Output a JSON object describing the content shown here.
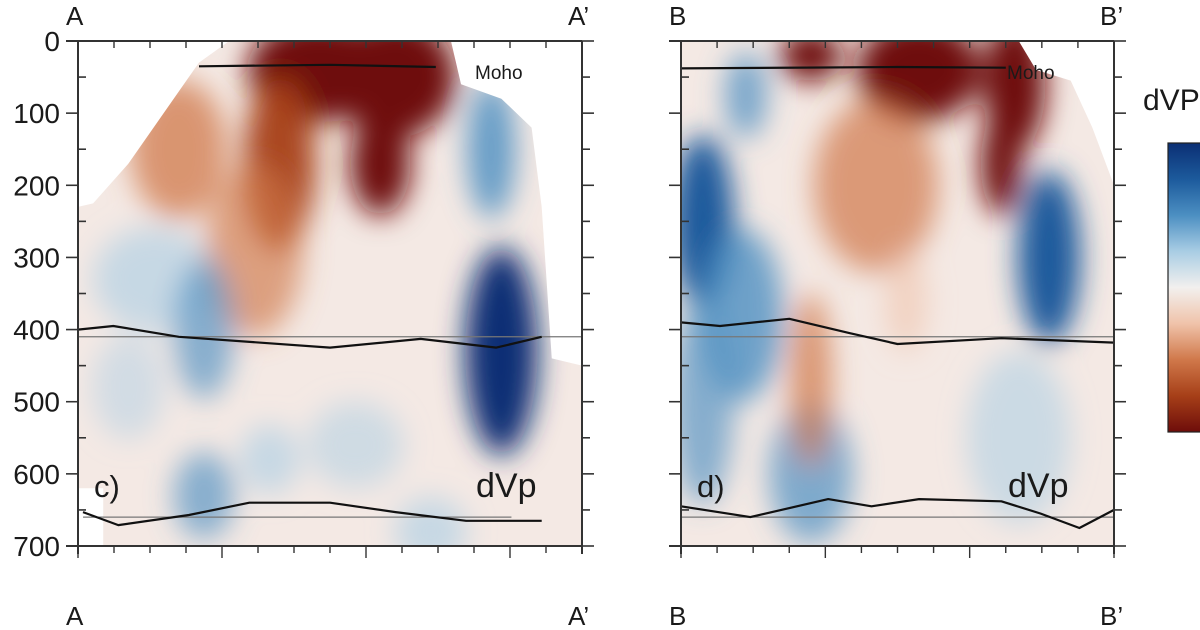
{
  "chart_data": {
    "type": "heatmap",
    "colorbar": {
      "label": "dVP",
      "colors": [
        "#0b2f74",
        "#1c5a9c",
        "#4c8fc2",
        "#a9cde4",
        "#f2f0ee",
        "#f0c3aa",
        "#d0784a",
        "#a63f18",
        "#6e0d0a"
      ]
    },
    "yaxis": {
      "label": "",
      "ylim": [
        0,
        700
      ],
      "ticks": [
        "0",
        "100",
        "200",
        "300",
        "400",
        "500",
        "600",
        "700"
      ]
    },
    "panels": [
      {
        "id": "c",
        "panel_label": "c)",
        "field_label": "dVp",
        "moho_label": "Moho",
        "start_label_top": "A",
        "end_label_top": "A’",
        "start_label_bottom": "A",
        "end_label_bottom": "A’",
        "moho": [
          [
            0.24,
            35
          ],
          [
            0.5,
            33
          ],
          [
            0.71,
            36
          ]
        ],
        "d410": [
          [
            0,
            400
          ],
          [
            0.07,
            395
          ],
          [
            0.2,
            410
          ],
          [
            0.5,
            425
          ],
          [
            0.68,
            413
          ],
          [
            0.83,
            425
          ],
          [
            0.92,
            410
          ]
        ],
        "d660": [
          [
            0.01,
            653
          ],
          [
            0.08,
            671
          ],
          [
            0.22,
            657
          ],
          [
            0.34,
            640
          ],
          [
            0.5,
            640
          ],
          [
            0.63,
            653
          ],
          [
            0.77,
            665
          ],
          [
            0.92,
            665
          ]
        ],
        "ref410": [
          0,
          1
        ],
        "ref660": [
          0.01,
          0.86
        ],
        "anomalies": [
          [
            0.48,
            40,
            0.12,
            60,
            -1
          ],
          [
            0.63,
            50,
            0.1,
            70,
            -1
          ],
          [
            0.6,
            170,
            0.05,
            60,
            -0.9
          ],
          [
            0.4,
            170,
            0.06,
            100,
            -0.7
          ],
          [
            0.2,
            150,
            0.08,
            80,
            -0.5
          ],
          [
            0.35,
            290,
            0.08,
            100,
            -0.4
          ],
          [
            0.84,
            430,
            0.06,
            120,
            1
          ],
          [
            0.82,
            150,
            0.04,
            80,
            0.6
          ],
          [
            0.15,
            330,
            0.1,
            60,
            0.35
          ],
          [
            0.25,
            400,
            0.05,
            80,
            0.4
          ],
          [
            0.25,
            630,
            0.05,
            50,
            0.4
          ],
          [
            0.55,
            560,
            0.08,
            50,
            0.25
          ],
          [
            0.38,
            580,
            0.05,
            40,
            0.35
          ],
          [
            0.7,
            680,
            0.06,
            40,
            0.35
          ],
          [
            0.1,
            480,
            0.06,
            60,
            0.2
          ]
        ]
      },
      {
        "id": "d",
        "panel_label": "d)",
        "field_label": "dVp",
        "moho_label": "Moho",
        "start_label_top": "B",
        "end_label_top": "B’",
        "start_label_bottom": "B",
        "end_label_bottom": "B’",
        "moho": [
          [
            0,
            38
          ],
          [
            0.5,
            36
          ],
          [
            0.75,
            37
          ]
        ],
        "d410": [
          [
            0,
            390
          ],
          [
            0.09,
            395
          ],
          [
            0.25,
            385
          ],
          [
            0.39,
            405
          ],
          [
            0.5,
            420
          ],
          [
            0.74,
            412
          ],
          [
            1,
            418
          ]
        ],
        "d660": [
          [
            0,
            645
          ],
          [
            0.16,
            660
          ],
          [
            0.34,
            635
          ],
          [
            0.44,
            645
          ],
          [
            0.55,
            635
          ],
          [
            0.74,
            638
          ],
          [
            0.83,
            655
          ],
          [
            0.92,
            675
          ],
          [
            1,
            650
          ]
        ],
        "ref410": [
          0,
          1
        ],
        "ref660": [
          0,
          1
        ],
        "anomalies": [
          [
            0.3,
            20,
            0.06,
            30,
            -0.9
          ],
          [
            0.55,
            40,
            0.12,
            60,
            -1
          ],
          [
            0.77,
            60,
            0.06,
            80,
            -1
          ],
          [
            0.74,
            170,
            0.04,
            60,
            -0.9
          ],
          [
            0.45,
            200,
            0.12,
            100,
            -0.45
          ],
          [
            0.05,
            250,
            0.06,
            100,
            0.8
          ],
          [
            0.14,
            380,
            0.08,
            100,
            0.55
          ],
          [
            0.85,
            300,
            0.06,
            100,
            0.85
          ],
          [
            0.15,
            75,
            0.04,
            50,
            0.5
          ],
          [
            0.3,
            600,
            0.08,
            80,
            0.45
          ],
          [
            0.78,
            550,
            0.1,
            100,
            0.3
          ],
          [
            0.3,
            470,
            0.04,
            100,
            -0.5
          ],
          [
            0.52,
            360,
            0.04,
            60,
            -0.35
          ],
          [
            0.05,
            500,
            0.06,
            120,
            0.4
          ]
        ]
      }
    ]
  }
}
